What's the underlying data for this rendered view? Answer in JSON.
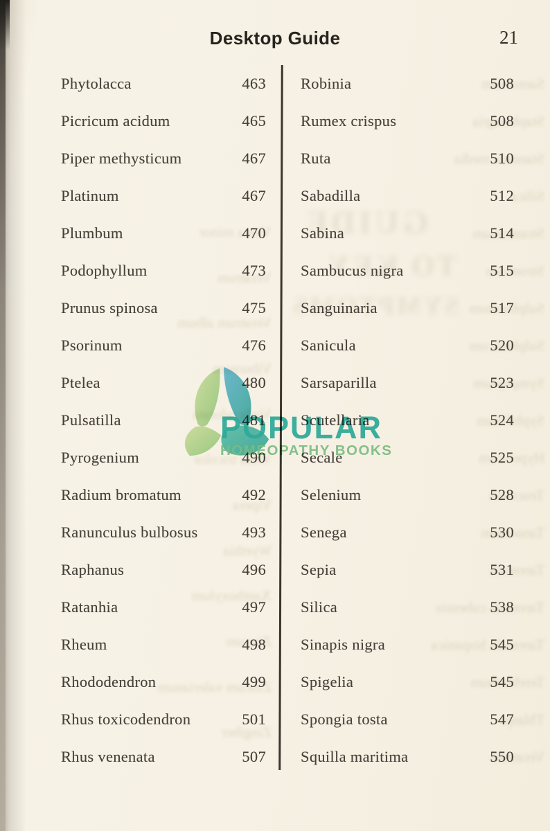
{
  "header": {
    "title": "Desktop Guide",
    "page_number": "21"
  },
  "index": {
    "left": [
      {
        "name": "Phytolacca",
        "page": "463"
      },
      {
        "name": "Picricum acidum",
        "page": "465"
      },
      {
        "name": "Piper methysticum",
        "page": "467"
      },
      {
        "name": "Platinum",
        "page": "467"
      },
      {
        "name": "Plumbum",
        "page": "470"
      },
      {
        "name": "Podophyllum",
        "page": "473"
      },
      {
        "name": "Prunus spinosa",
        "page": "475"
      },
      {
        "name": "Psorinum",
        "page": "476"
      },
      {
        "name": "Ptelea",
        "page": "480"
      },
      {
        "name": "Pulsatilla",
        "page": "481"
      },
      {
        "name": "Pyrogenium",
        "page": "490"
      },
      {
        "name": "Radium bromatum",
        "page": "492"
      },
      {
        "name": "Ranunculus bulbosus",
        "page": "493"
      },
      {
        "name": "Raphanus",
        "page": "496"
      },
      {
        "name": "Ratanhia",
        "page": "497"
      },
      {
        "name": "Rheum",
        "page": "498"
      },
      {
        "name": "Rhododendron",
        "page": "499"
      },
      {
        "name": "Rhus toxicodendron",
        "page": "501"
      },
      {
        "name": "Rhus venenata",
        "page": "507"
      }
    ],
    "right": [
      {
        "name": "Robinia",
        "page": "508"
      },
      {
        "name": "Rumex crispus",
        "page": "508"
      },
      {
        "name": "Ruta",
        "page": "510"
      },
      {
        "name": "Sabadilla",
        "page": "512"
      },
      {
        "name": "Sabina",
        "page": "514"
      },
      {
        "name": "Sambucus nigra",
        "page": "515"
      },
      {
        "name": "Sanguinaria",
        "page": "517"
      },
      {
        "name": "Sanicula",
        "page": "520"
      },
      {
        "name": "Sarsaparilla",
        "page": "523"
      },
      {
        "name": "Scutellaria",
        "page": "524"
      },
      {
        "name": "Secale",
        "page": "525"
      },
      {
        "name": "Selenium",
        "page": "528"
      },
      {
        "name": "Senega",
        "page": "530"
      },
      {
        "name": "Sepia",
        "page": "531"
      },
      {
        "name": "Silica",
        "page": "538"
      },
      {
        "name": "Sinapis nigra",
        "page": "545"
      },
      {
        "name": "Spigelia",
        "page": "545"
      },
      {
        "name": "Spongia tosta",
        "page": "547"
      },
      {
        "name": "Squilla maritima",
        "page": "550"
      }
    ]
  },
  "watermark": {
    "icon": "butterfly-leaf-logo",
    "brand": "POPULAR",
    "tagline": "HOMEOPATHY BOOKS",
    "brand_color": "#2fb3ab",
    "tagline_color": "#7fc590"
  },
  "bleedthrough": {
    "titles": [
      "GUIDE",
      "TO KEY",
      "SYMPTOMS"
    ],
    "right": [
      "Santonium",
      "Staphisagria",
      "Stannula media",
      "Silica",
      "Stramonium",
      "Strontium",
      "Sulphuratum",
      "Sulphuricum",
      "Symphytum",
      "Syphilinum",
      "Hypericum",
      "Teucrium",
      "Tanacetum",
      "Tarentula",
      "Tarentula cubensis",
      "Tarentula hispanica",
      "Terebinthum",
      "Thlaspi",
      "Veratrum"
    ],
    "left": [
      "",
      "",
      "",
      "",
      "",
      "",
      "Vinca minor",
      "Veratrum",
      "Veratrum album",
      "Viburnum",
      "Viola odorata",
      "Viola tricolor",
      "Vipera",
      "Wyethia",
      "Xanthoxylum",
      "Zincum",
      "Zincum valerianum",
      "Zingiber",
      ""
    ]
  },
  "colors": {
    "paper": "#f6f1e4",
    "ink": "#46413a",
    "divider": "#3a362e",
    "spine": "#26231f"
  }
}
